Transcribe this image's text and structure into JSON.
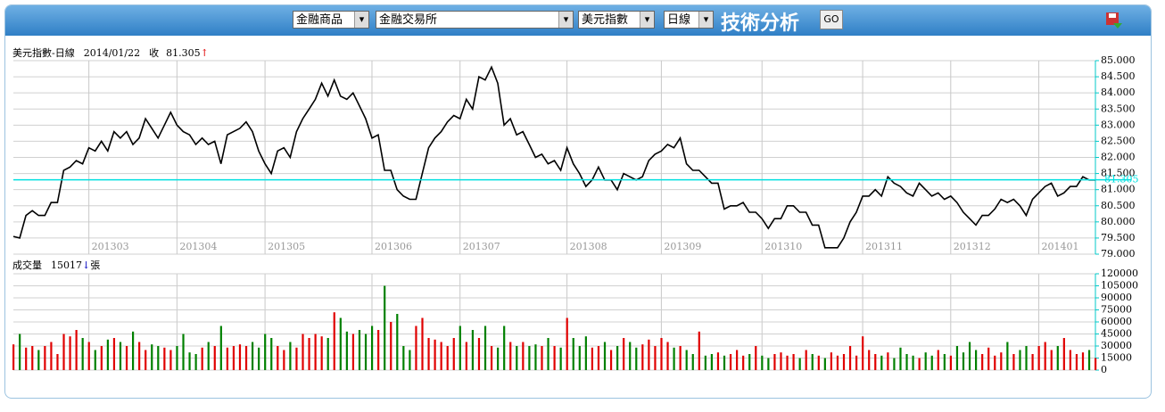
{
  "toolbar": {
    "selects": [
      "金融商品",
      "金融交易所",
      "美元指數",
      "日線"
    ],
    "title": "技術分析",
    "button": "GO"
  },
  "chart_data": [
    {
      "type": "line",
      "title": "美元指數-日線",
      "date": "2014/01/22",
      "close_label": "收",
      "close": 81.305,
      "arrow": "↑",
      "color": "#000000",
      "ref_color": "#00e0e0",
      "arrow_color": "#e00000",
      "categories": [
        null,
        null,
        null,
        null,
        null,
        null,
        null,
        null,
        null,
        null,
        null,
        null,
        "201303",
        null,
        null,
        null,
        null,
        null,
        null,
        null,
        null,
        null,
        null,
        null,
        null,
        null,
        "201304",
        null,
        null,
        null,
        null,
        null,
        null,
        null,
        null,
        null,
        null,
        null,
        null,
        null,
        "201305",
        null,
        null,
        null,
        null,
        null,
        null,
        null,
        null,
        null,
        null,
        null,
        null,
        null,
        null,
        null,
        null,
        "201306",
        null,
        null,
        null,
        null,
        null,
        null,
        null,
        null,
        null,
        null,
        null,
        null,
        null,
        "201307",
        null,
        null,
        null,
        null,
        null,
        null,
        null,
        null,
        null,
        null,
        null,
        null,
        null,
        null,
        null,
        null,
        "201308",
        null,
        null,
        null,
        null,
        null,
        null,
        null,
        null,
        null,
        null,
        null,
        null,
        null,
        null,
        "201309",
        null,
        null,
        null,
        null,
        null,
        null,
        null,
        null,
        null,
        null,
        null,
        null,
        null,
        null,
        null,
        "201310",
        null,
        null,
        null,
        null,
        null,
        null,
        null,
        null,
        null,
        null,
        null,
        null,
        null,
        null,
        null,
        "201311",
        null,
        null,
        null,
        null,
        null,
        null,
        null,
        null,
        null,
        null,
        null,
        null,
        null,
        "201312",
        null,
        null,
        null,
        null,
        null,
        null,
        null,
        null,
        null,
        null,
        null,
        null,
        null,
        "201401",
        null,
        null,
        null,
        null,
        null,
        null,
        null,
        null,
        null
      ],
      "values": [
        79.55,
        79.5,
        80.2,
        80.35,
        80.2,
        80.2,
        80.6,
        80.6,
        81.6,
        81.7,
        81.9,
        81.8,
        82.3,
        82.2,
        82.5,
        82.2,
        82.8,
        82.6,
        82.8,
        82.4,
        82.6,
        83.2,
        82.9,
        82.6,
        83.0,
        83.4,
        83.0,
        82.8,
        82.7,
        82.4,
        82.6,
        82.4,
        82.5,
        81.8,
        82.7,
        82.8,
        82.9,
        83.1,
        82.8,
        82.2,
        81.8,
        81.5,
        82.2,
        82.3,
        82.0,
        82.8,
        83.2,
        83.5,
        83.8,
        84.3,
        83.9,
        84.4,
        83.9,
        83.8,
        84.0,
        83.6,
        83.2,
        82.6,
        82.7,
        81.6,
        81.6,
        81.0,
        80.8,
        80.7,
        80.7,
        81.5,
        82.3,
        82.6,
        82.8,
        83.1,
        83.3,
        83.2,
        83.8,
        83.5,
        84.5,
        84.4,
        84.8,
        84.3,
        83.0,
        83.2,
        82.7,
        82.8,
        82.4,
        82.0,
        82.1,
        81.8,
        81.9,
        81.6,
        82.3,
        81.8,
        81.5,
        81.1,
        81.3,
        81.7,
        81.3,
        81.3,
        81.0,
        81.5,
        81.4,
        81.3,
        81.4,
        81.9,
        82.1,
        82.2,
        82.4,
        82.3,
        82.6,
        81.8,
        81.6,
        81.6,
        81.4,
        81.2,
        81.2,
        80.4,
        80.5,
        80.5,
        80.6,
        80.3,
        80.3,
        80.1,
        79.8,
        80.1,
        80.1,
        80.5,
        80.5,
        80.3,
        80.3,
        79.9,
        79.9,
        79.2,
        79.2,
        79.2,
        79.5,
        80.0,
        80.3,
        80.8,
        80.8,
        81.0,
        80.8,
        81.4,
        81.2,
        81.1,
        80.9,
        80.8,
        81.2,
        81.0,
        80.8,
        80.9,
        80.7,
        80.8,
        80.6,
        80.3,
        80.1,
        79.9,
        80.2,
        80.2,
        80.4,
        80.7,
        80.6,
        80.7,
        80.5,
        80.2,
        80.7,
        80.9,
        81.1,
        81.2,
        80.8,
        80.9,
        81.1,
        81.1,
        81.4,
        81.3,
        81.3
      ],
      "ylim": [
        79,
        85
      ],
      "yticks": [
        {
          "value": 79,
          "label": "79.000"
        },
        {
          "value": 79.5,
          "label": "79.500"
        },
        {
          "value": 80,
          "label": "80.000"
        },
        {
          "value": 80.5,
          "label": "80.500"
        },
        {
          "value": 81,
          "label": "81.000"
        },
        {
          "value": 81.5,
          "label": "81.500"
        },
        {
          "value": 82,
          "label": "82.000"
        },
        {
          "value": 82.5,
          "label": "82.500"
        },
        {
          "value": 83,
          "label": "83.000"
        },
        {
          "value": 83.5,
          "label": "83.500"
        },
        {
          "value": 84,
          "label": "84.000"
        },
        {
          "value": 84.5,
          "label": "84.500"
        },
        {
          "value": 85,
          "label": "85.000"
        }
      ],
      "grid": true
    },
    {
      "type": "bar",
      "title": "成交量",
      "volume": 15017,
      "arrow": "↓",
      "unit": "張",
      "up_color": "#e00000",
      "down_color": "#008000",
      "arrow_color": "#0000c0",
      "values": [
        32000,
        45000,
        28000,
        30000,
        25000,
        30000,
        35000,
        20000,
        45000,
        42000,
        50000,
        40000,
        35000,
        25000,
        30000,
        38000,
        40000,
        35000,
        30000,
        48000,
        35000,
        25000,
        32000,
        30000,
        28000,
        25000,
        30000,
        45000,
        22000,
        20000,
        28000,
        35000,
        30000,
        55000,
        28000,
        30000,
        32000,
        30000,
        35000,
        28000,
        45000,
        40000,
        30000,
        25000,
        35000,
        28000,
        45000,
        40000,
        45000,
        42000,
        40000,
        72000,
        65000,
        48000,
        45000,
        50000,
        45000,
        55000,
        50000,
        105000,
        60000,
        70000,
        30000,
        25000,
        55000,
        65000,
        40000,
        38000,
        35000,
        30000,
        40000,
        55000,
        35000,
        50000,
        40000,
        55000,
        30000,
        28000,
        55000,
        35000,
        30000,
        35000,
        30000,
        32000,
        30000,
        40000,
        30000,
        28000,
        65000,
        40000,
        30000,
        42000,
        28000,
        30000,
        35000,
        25000,
        30000,
        40000,
        35000,
        28000,
        32000,
        38000,
        30000,
        40000,
        35000,
        28000,
        30000,
        25000,
        20000,
        48000,
        18000,
        20000,
        22000,
        18000,
        20000,
        25000,
        18000,
        20000,
        30000,
        18000,
        15000,
        20000,
        22000,
        18000,
        20000,
        15000,
        25000,
        20000,
        18000,
        15000,
        22000,
        18000,
        20000,
        30000,
        18000,
        42000,
        25000,
        20000,
        18000,
        22000,
        15000,
        28000,
        20000,
        18000,
        15000,
        22000,
        18000,
        25000,
        20000,
        18000,
        30000,
        22000,
        35000,
        25000,
        20000,
        28000,
        18000,
        22000,
        35000,
        20000,
        25000,
        30000,
        20000,
        30000,
        35000,
        25000,
        30000,
        40000,
        25000,
        20000,
        22000,
        25000,
        15017
      ],
      "ylim": [
        0,
        120000
      ],
      "yticks": [
        0,
        15000,
        30000,
        45000,
        60000,
        75000,
        90000,
        105000,
        120000
      ],
      "grid": true
    }
  ]
}
